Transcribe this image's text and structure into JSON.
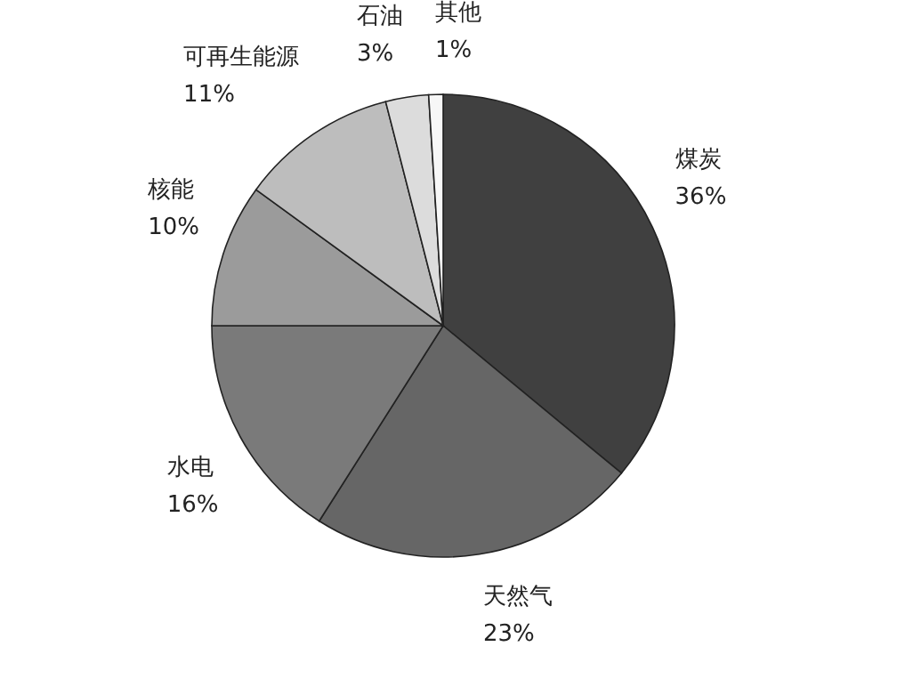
{
  "chart_data": {
    "type": "pie",
    "categories": [
      "煤炭",
      "天然气",
      "水电",
      "核能",
      "可再生能源",
      "石油",
      "其他"
    ],
    "values": [
      36,
      23,
      16,
      10,
      11,
      3,
      1
    ],
    "value_labels": [
      "36%",
      "23%",
      "16%",
      "10%",
      "11%",
      "3%",
      "1%"
    ],
    "colors": [
      "#404040",
      "#666666",
      "#7a7a7a",
      "#9b9b9b",
      "#bdbdbd",
      "#dcdcdc",
      "#f7f7f7"
    ]
  }
}
